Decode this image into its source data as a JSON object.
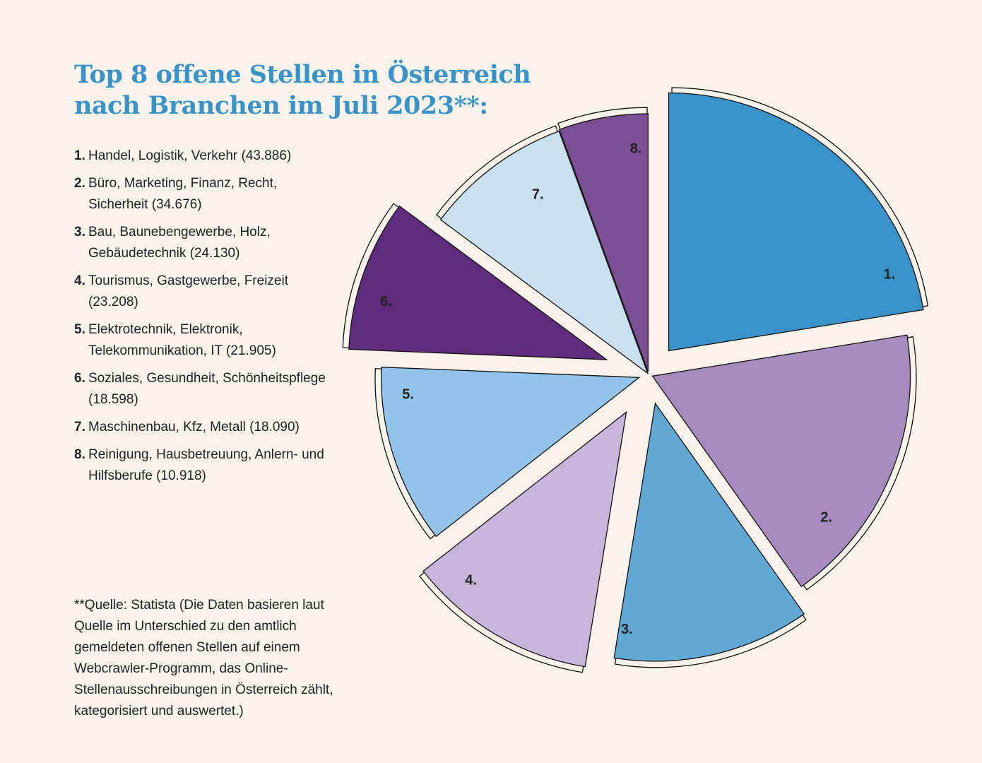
{
  "chart_data": {
    "type": "pie",
    "title": "Top 8 offene Stellen in Österreich nach Branchen im Juli 2023**:",
    "title_lines": [
      "Top 8 offene Stellen in Österreich",
      "nach Branchen im Juli 2023**:"
    ],
    "slices": [
      {
        "rank": "1.",
        "label": "Handel, Logistik, Verkehr (43.886)",
        "value": 43886,
        "color": "#3a93c8"
      },
      {
        "rank": "2.",
        "label": "Büro, Marketing, Finanz, Recht, Sicherheit (34.676)",
        "value": 34676,
        "color": "#a68bbf"
      },
      {
        "rank": "3.",
        "label": "Bau, Baunebengewerbe, Holz, Gebäudetechnik (24.130)",
        "value": 24130,
        "color": "#62a8d4"
      },
      {
        "rank": "4.",
        "label": "Tourismus, Gastgewerbe, Freizeit (23.208)",
        "value": 23208,
        "color": "#c6b6d9"
      },
      {
        "rank": "5.",
        "label": "Elektrotechnik, Elektronik, Telekommunikation, IT (21.905)",
        "value": 21905,
        "color": "#93c3e8"
      },
      {
        "rank": "6.",
        "label": "Soziales, Gesundheit, Schönheitspflege (18.598)",
        "value": 18598,
        "color": "#5f2b7b"
      },
      {
        "rank": "7.",
        "label": "Maschinenbau, Kfz, Metall (18.090)",
        "value": 18090,
        "color": "#c9e0f0"
      },
      {
        "rank": "8.",
        "label": "Reinigung, Hausbetreuung, Anlern- und Hilfsberufe (10.918)",
        "value": 10918,
        "color": "#7b4f94"
      }
    ],
    "legend_placement": "left",
    "source": "**Quelle: Statista (Die Daten basieren laut Quelle im Unterschied zu den amtlich gemeldeten offenen Stellen auf einem Webcrawler-Programm, das Online-Stellenausschreibungen in Österreich zählt, kategorisiert und auswertet.)"
  },
  "colors": {
    "background": "#faf3ec",
    "title": "#3a93c8"
  }
}
